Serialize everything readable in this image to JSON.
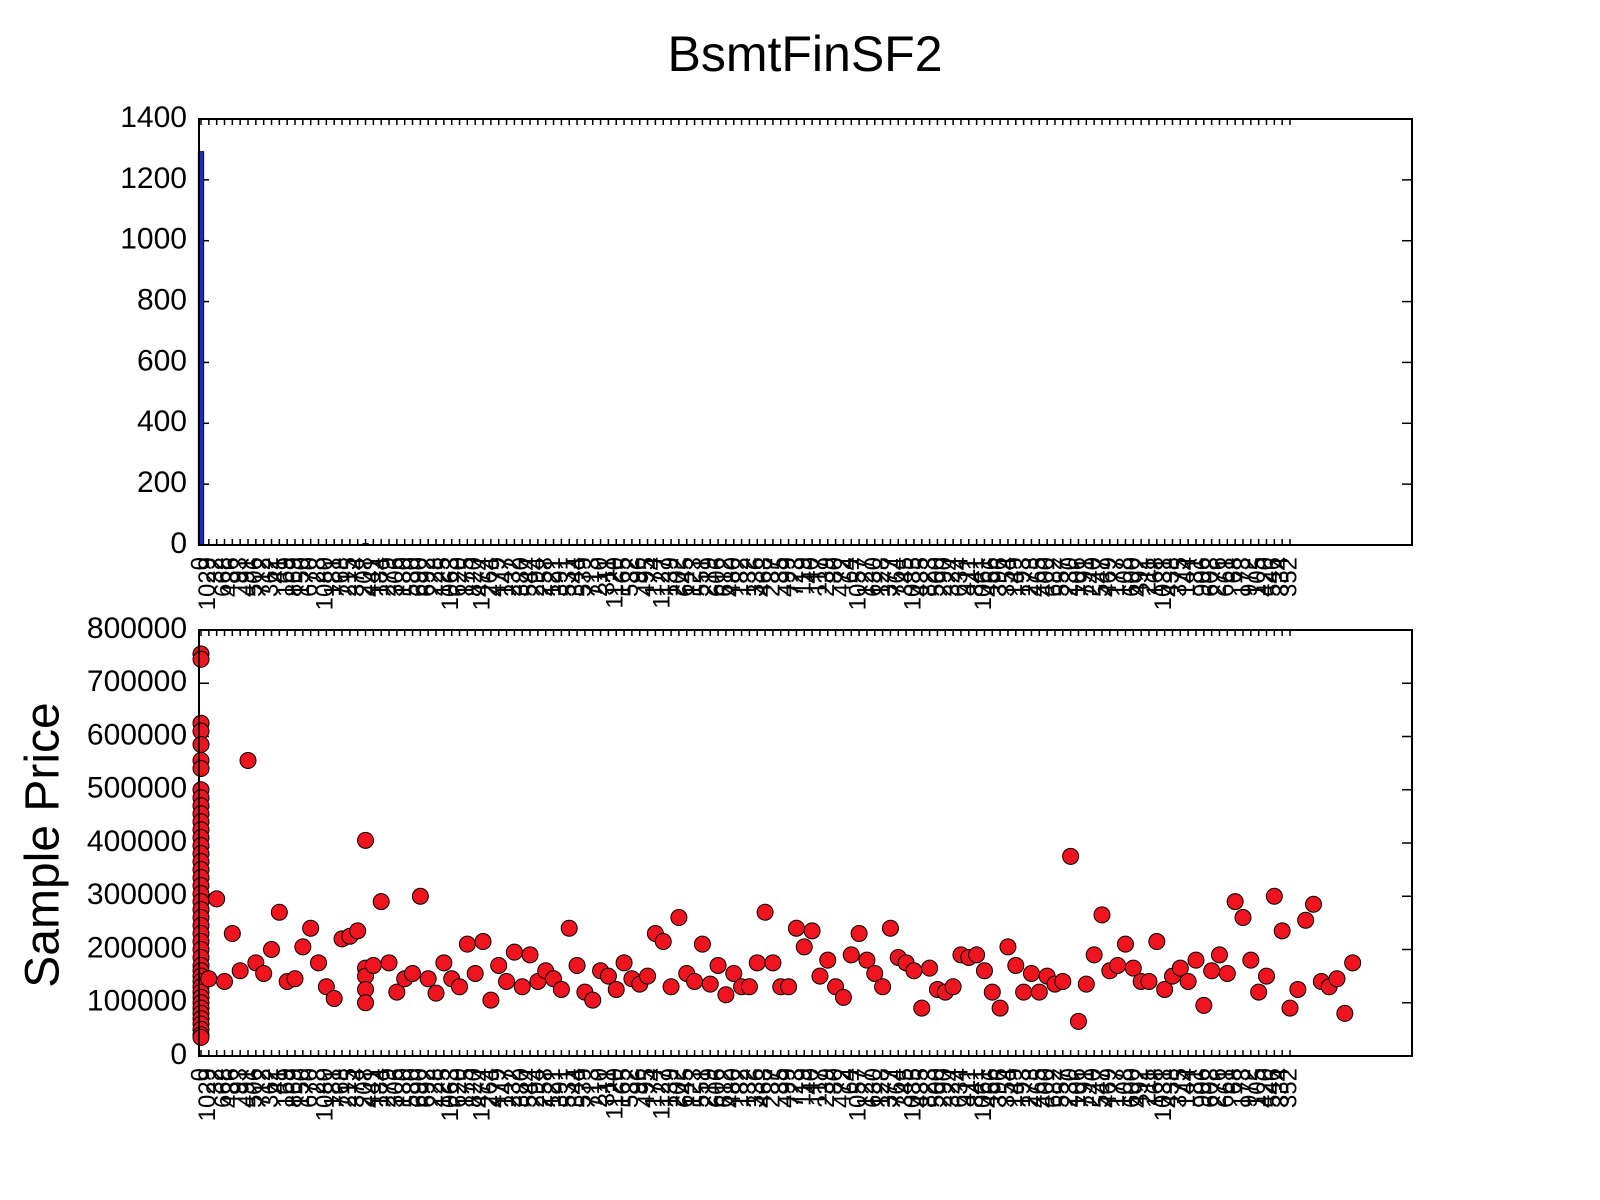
{
  "chart_data": [
    {
      "type": "bar",
      "title": "BsmtFinSF2",
      "color": "#1c2db8",
      "categories": [
        "0",
        "1029",
        "32",
        "668",
        "486",
        "93",
        "491",
        "506",
        "712",
        "362",
        "41",
        "169",
        "869",
        "150",
        "670",
        "28",
        "1080",
        "181",
        "768",
        "215",
        "374",
        "208",
        "441",
        "184",
        "279",
        "306",
        "180",
        "580",
        "690",
        "692",
        "228",
        "125",
        "1063",
        "620",
        "175",
        "820",
        "1474",
        "264",
        "479",
        "147",
        "232",
        "380",
        "544",
        "294",
        "258",
        "121",
        "391",
        "531",
        "344",
        "539",
        "713",
        "210",
        "311",
        "1120",
        "165",
        "532",
        "96",
        "495",
        "174",
        "1127",
        "139",
        "202",
        "645",
        "123",
        "551",
        "219",
        "606",
        "612",
        "480",
        "182",
        "132",
        "336",
        "468",
        "287",
        "35",
        "499",
        "723",
        "119",
        "40",
        "117",
        "239",
        "80",
        "472",
        "64",
        "1057",
        "127",
        "630",
        "128",
        "377",
        "764",
        "345",
        "1085",
        "435",
        "823",
        "500",
        "290",
        "324",
        "634",
        "411",
        "841",
        "1061",
        "466",
        "396",
        "354",
        "149",
        "193",
        "273",
        "465",
        "400",
        "682",
        "557",
        "230",
        "106",
        "791",
        "240",
        "547",
        "469",
        "177",
        "108",
        "600",
        "492",
        "211",
        "168",
        "1031",
        "438",
        "375",
        "144",
        "81",
        "906",
        "608",
        "276",
        "661",
        "68",
        "173",
        "972",
        "105",
        "420",
        "546",
        "334",
        "352"
      ],
      "values": [
        1293,
        1,
        1,
        1,
        1,
        1,
        1,
        1,
        1,
        1,
        1,
        1,
        1,
        1,
        1,
        1,
        1,
        1,
        1,
        1,
        1,
        5,
        1,
        1,
        1,
        1,
        1,
        1,
        1,
        1,
        1,
        1,
        1,
        1,
        1,
        1,
        1,
        1,
        1,
        1,
        1,
        1,
        1,
        1,
        1,
        1,
        1,
        1,
        1,
        1,
        1,
        1,
        1,
        1,
        1,
        1,
        1,
        1,
        1,
        1,
        1,
        1,
        1,
        1,
        1,
        1,
        1,
        1,
        1,
        1,
        1,
        1,
        1,
        1,
        1,
        1,
        1,
        1,
        1,
        1,
        1,
        1,
        1,
        1,
        1,
        1,
        1,
        1,
        1,
        1,
        1,
        1,
        1,
        1,
        1,
        1,
        1,
        1,
        1,
        1,
        1,
        1,
        1,
        1,
        1,
        1,
        1,
        1,
        1,
        1,
        1,
        1,
        1,
        1,
        1,
        1,
        1,
        1,
        1,
        1,
        1,
        1,
        1,
        1,
        1,
        1,
        1,
        1,
        1,
        1,
        1,
        1,
        1,
        1,
        1,
        1,
        1,
        1,
        1,
        1
      ],
      "ylim": [
        0,
        1400
      ],
      "yticks": [
        0,
        200,
        400,
        600,
        800,
        1000,
        1200,
        1400
      ]
    },
    {
      "type": "scatter",
      "ylabel": "Sample Price",
      "color": "#f0141e",
      "categories": [
        "0",
        "1029",
        "32",
        "668",
        "486",
        "93",
        "491",
        "506",
        "712",
        "362",
        "41",
        "169",
        "869",
        "150",
        "670",
        "28",
        "1080",
        "181",
        "768",
        "215",
        "374",
        "208",
        "441",
        "184",
        "279",
        "306",
        "180",
        "580",
        "690",
        "692",
        "228",
        "125",
        "1063",
        "620",
        "175",
        "820",
        "1474",
        "264",
        "479",
        "147",
        "232",
        "380",
        "544",
        "294",
        "258",
        "121",
        "391",
        "531",
        "344",
        "539",
        "713",
        "210",
        "311",
        "1120",
        "165",
        "532",
        "96",
        "495",
        "174",
        "1127",
        "139",
        "202",
        "645",
        "123",
        "551",
        "219",
        "606",
        "612",
        "480",
        "182",
        "132",
        "336",
        "468",
        "287",
        "35",
        "499",
        "723",
        "119",
        "40",
        "117",
        "239",
        "80",
        "472",
        "64",
        "1057",
        "127",
        "630",
        "128",
        "377",
        "764",
        "345",
        "1085",
        "435",
        "823",
        "500",
        "290",
        "324",
        "634",
        "411",
        "841",
        "1061",
        "466",
        "396",
        "354",
        "149",
        "193",
        "273",
        "465",
        "400",
        "682",
        "557",
        "230",
        "106",
        "791",
        "240",
        "547",
        "469",
        "177",
        "108",
        "600",
        "492",
        "211",
        "168",
        "1031",
        "438",
        "375",
        "144",
        "81",
        "906",
        "608",
        "276",
        "661",
        "68",
        "173",
        "972",
        "105",
        "420",
        "546",
        "334",
        "352"
      ],
      "values": [
        [
          755000,
          745000,
          625000,
          610000,
          585000,
          555000,
          540000,
          500000,
          485000,
          470000,
          455000,
          440000,
          425000,
          410000,
          395000,
          380000,
          365000,
          350000,
          335000,
          320000,
          305000,
          290000,
          275000,
          260000,
          245000,
          230000,
          215000,
          200000,
          185000,
          170000,
          160000,
          150000,
          140000,
          130000,
          120000,
          110000,
          100000,
          90000,
          80000,
          70000,
          60000,
          50000,
          40000,
          35000
        ],
        [
          145000
        ],
        [
          295000
        ],
        [
          140000
        ],
        [
          230000
        ],
        [
          160000
        ],
        [
          555000
        ],
        [
          175000
        ],
        [
          155000
        ],
        [
          200000
        ],
        [
          270000
        ],
        [
          140000
        ],
        [
          145000
        ],
        [
          205000
        ],
        [
          240000
        ],
        [
          175000
        ],
        [
          130000
        ],
        [
          108000
        ],
        [
          220000
        ],
        [
          225000
        ],
        [
          235000
        ],
        [
          405000,
          165000,
          150000,
          125000,
          100000
        ],
        [
          170000
        ],
        [
          290000
        ],
        [
          175000
        ],
        [
          120000
        ],
        [
          145000
        ],
        [
          155000
        ],
        [
          300000
        ],
        [
          145000
        ],
        [
          118000
        ],
        [
          175000
        ],
        [
          145000
        ],
        [
          130000
        ],
        [
          210000
        ],
        [
          155000
        ],
        [
          215000
        ],
        [
          105000
        ],
        [
          170000
        ],
        [
          140000
        ],
        [
          195000
        ],
        [
          130000
        ],
        [
          190000
        ],
        [
          140000
        ],
        [
          160000
        ],
        [
          145000
        ],
        [
          125000
        ],
        [
          240000
        ],
        [
          170000
        ],
        [
          120000
        ],
        [
          105000
        ],
        [
          160000
        ],
        [
          150000
        ],
        [
          125000
        ],
        [
          175000
        ],
        [
          145000
        ],
        [
          135000
        ],
        [
          150000
        ],
        [
          230000
        ],
        [
          215000
        ],
        [
          130000
        ],
        [
          260000
        ],
        [
          155000
        ],
        [
          140000
        ],
        [
          210000
        ],
        [
          135000
        ],
        [
          170000
        ],
        [
          115000
        ],
        [
          155000
        ],
        [
          130000
        ],
        [
          130000
        ],
        [
          175000
        ],
        [
          270000
        ],
        [
          175000
        ],
        [
          130000
        ],
        [
          130000
        ],
        [
          240000
        ],
        [
          205000
        ],
        [
          235000
        ],
        [
          150000
        ],
        [
          180000
        ],
        [
          130000
        ],
        [
          110000
        ],
        [
          190000
        ],
        [
          230000
        ],
        [
          180000
        ],
        [
          155000
        ],
        [
          130000
        ],
        [
          240000
        ],
        [
          185000
        ],
        [
          175000
        ],
        [
          160000
        ],
        [
          90000
        ],
        [
          165000
        ],
        [
          125000
        ],
        [
          120000
        ],
        [
          130000
        ],
        [
          190000
        ],
        [
          185000
        ],
        [
          190000
        ],
        [
          160000
        ],
        [
          120000
        ],
        [
          90000
        ],
        [
          205000
        ],
        [
          170000
        ],
        [
          120000
        ],
        [
          155000
        ],
        [
          120000
        ],
        [
          150000
        ],
        [
          135000
        ],
        [
          140000
        ],
        [
          375000
        ],
        [
          65000
        ],
        [
          135000
        ],
        [
          190000
        ],
        [
          265000
        ],
        [
          160000
        ],
        [
          170000
        ],
        [
          210000
        ],
        [
          165000
        ],
        [
          140000
        ],
        [
          140000
        ],
        [
          215000
        ],
        [
          125000
        ],
        [
          150000
        ],
        [
          165000
        ],
        [
          140000
        ],
        [
          180000
        ],
        [
          95000
        ],
        [
          160000
        ],
        [
          190000
        ],
        [
          155000
        ],
        [
          290000
        ],
        [
          260000
        ],
        [
          180000
        ],
        [
          120000
        ],
        [
          150000
        ],
        [
          300000
        ],
        [
          235000
        ],
        [
          90000
        ],
        [
          125000
        ],
        [
          255000
        ],
        [
          285000
        ],
        [
          140000
        ],
        [
          130000
        ],
        [
          145000
        ],
        [
          80000
        ],
        [
          175000
        ]
      ],
      "ylim": [
        0,
        800000
      ],
      "yticks": [
        0,
        100000,
        200000,
        300000,
        400000,
        500000,
        600000,
        700000,
        800000
      ]
    }
  ]
}
